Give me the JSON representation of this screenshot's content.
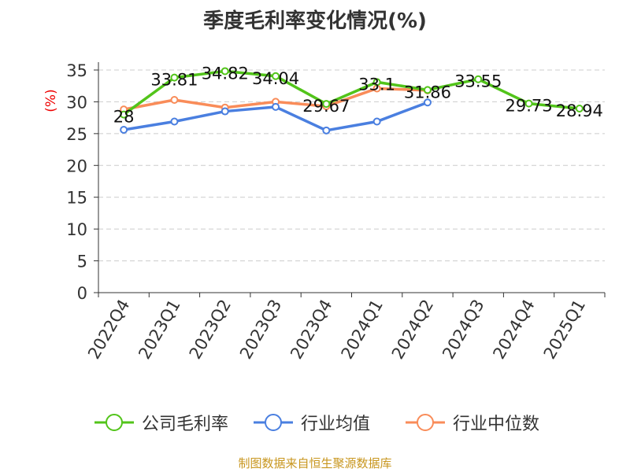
{
  "chart_data": {
    "type": "line",
    "title": "季度毛利率变化情况(%)",
    "ylabel": "(%)",
    "xlabel": "",
    "ylim": [
      0,
      35
    ],
    "yticks": [
      0,
      5,
      10,
      15,
      20,
      25,
      30,
      35
    ],
    "categories": [
      "2022Q4",
      "2023Q1",
      "2023Q2",
      "2023Q3",
      "2023Q4",
      "2024Q1",
      "2024Q2",
      "2024Q3",
      "2024Q4",
      "2025Q1"
    ],
    "grid": true,
    "legend_position": "bottom",
    "series": [
      {
        "name": "公司毛利率",
        "color": "#52c41a",
        "values": [
          28,
          33.81,
          34.82,
          34.04,
          29.67,
          33.1,
          31.86,
          33.55,
          29.73,
          28.94
        ],
        "labels": [
          "28",
          "33.81",
          "34.82",
          "34.04",
          "29.67",
          "33.1",
          "31.86",
          "33.55",
          "29.73",
          "28.94"
        ]
      },
      {
        "name": "行业均值",
        "color": "#4a7fe0",
        "values": [
          25.6,
          26.9,
          28.5,
          29.2,
          25.5,
          26.9,
          29.9,
          null,
          null,
          null
        ]
      },
      {
        "name": "行业中位数",
        "color": "#f98c59",
        "values": [
          28.8,
          30.3,
          29.1,
          30.0,
          29.3,
          32.1,
          31.8,
          null,
          null,
          null
        ]
      }
    ]
  },
  "source": "制图数据来自恒生聚源数据库"
}
